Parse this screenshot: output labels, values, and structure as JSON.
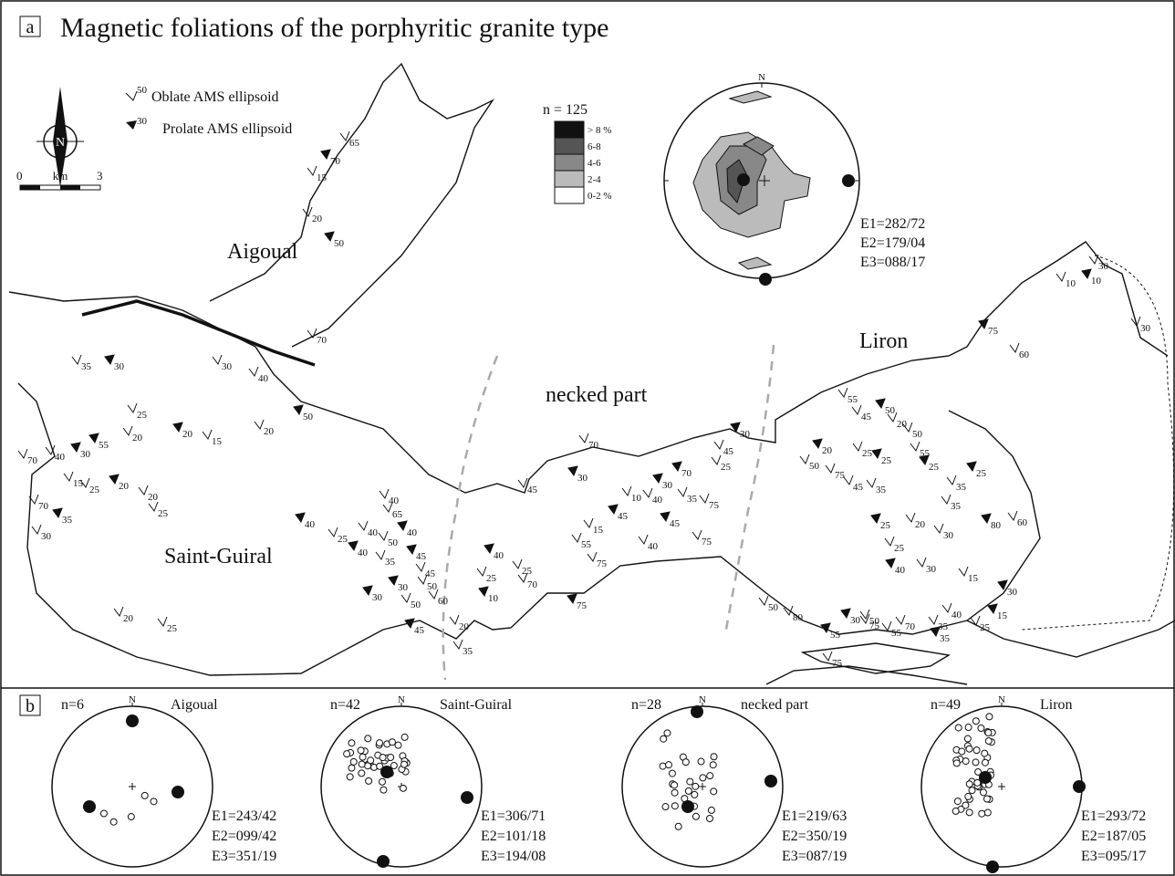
{
  "panel_a": {
    "label": "a",
    "title": "Magnetic foliations of the porphyritic granite type",
    "legend": [
      "Oblate AMS ellipsoid",
      "Prolate AMS ellipsoid"
    ],
    "legend_dips": [
      "50",
      "30"
    ],
    "north": "N",
    "scale": {
      "start": "0",
      "unit": "km",
      "end": "3"
    },
    "places": [
      "Aigoual",
      "Liron",
      "necked part",
      "Saint-Guiral"
    ],
    "density": {
      "n": "n = 125",
      "classes": [
        "> 8 %",
        "6-8",
        "4-6",
        "2-4",
        "0-2 %"
      ]
    },
    "stereonet": {
      "north": "N",
      "eigen": [
        "E1=282/72",
        "E2=179/04",
        "E3=088/17"
      ]
    },
    "dips": [
      "65",
      "70",
      "15",
      "20",
      "50",
      "70",
      "35",
      "30",
      "30",
      "40",
      "50",
      "25",
      "20",
      "20",
      "15",
      "20",
      "55",
      "70",
      "40",
      "30",
      "15",
      "25",
      "20",
      "20",
      "70",
      "35",
      "30",
      "25",
      "40",
      "40",
      "65",
      "40",
      "25",
      "40",
      "40",
      "50",
      "35",
      "45",
      "45",
      "50",
      "30",
      "50",
      "60",
      "30",
      "20",
      "25",
      "45",
      "20",
      "35",
      "40",
      "25",
      "25",
      "10",
      "70",
      "45",
      "30",
      "70",
      "15",
      "45",
      "55",
      "75",
      "75",
      "10",
      "40",
      "30",
      "35",
      "75",
      "45",
      "75",
      "40",
      "70",
      "25",
      "45",
      "30",
      "55",
      "45",
      "50",
      "20",
      "50",
      "20",
      "25",
      "55",
      "25",
      "50",
      "75",
      "25",
      "45",
      "35",
      "25",
      "35",
      "35",
      "25",
      "20",
      "30",
      "80",
      "60",
      "25",
      "40",
      "30",
      "15",
      "30",
      "40",
      "25",
      "15",
      "50",
      "80",
      "30",
      "50",
      "55",
      "55",
      "75",
      "75",
      "35",
      "70",
      "35",
      "75",
      "60",
      "10",
      "10",
      "30",
      "30"
    ]
  },
  "panel_b": {
    "label": "b",
    "nets": [
      {
        "n": "n=6",
        "north": "N",
        "name": "Aigoual",
        "eigen": [
          "E1=243/42",
          "E2=099/42",
          "E3=351/19"
        ]
      },
      {
        "n": "n=42",
        "north": "N",
        "name": "Saint-Guiral",
        "eigen": [
          "E1=306/71",
          "E2=101/18",
          "E3=194/08"
        ]
      },
      {
        "n": "n=28",
        "north": "N",
        "name": "necked part",
        "eigen": [
          "E1=219/63",
          "E2=350/19",
          "E3=087/19"
        ]
      },
      {
        "n": "n=49",
        "north": "N",
        "name": "Liron",
        "eigen": [
          "E1=293/72",
          "E2=187/05",
          "E3=095/17"
        ]
      }
    ]
  }
}
